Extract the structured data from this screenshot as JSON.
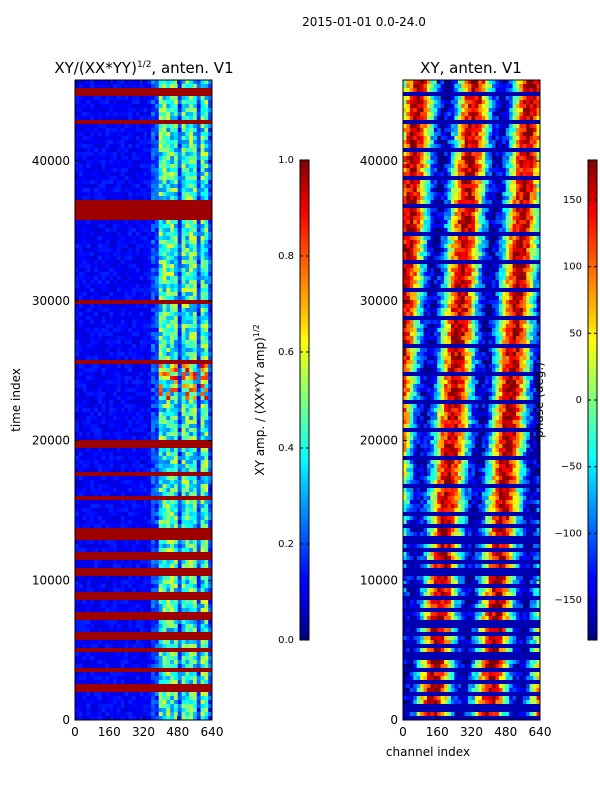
{
  "suptitle": "2015-01-01 0.0-24.0",
  "chart_data": [
    {
      "type": "heatmap",
      "title_main": "XY/(XX*YY)",
      "title_exp": "1/2",
      "title_suffix": ", anten. V1",
      "xlabel": "",
      "ylabel": "time index",
      "xlim": [
        0,
        640
      ],
      "ylim": [
        0,
        45800
      ],
      "x_ticks": [
        0,
        160,
        320,
        480,
        640
      ],
      "x_tick_labels": [
        "0",
        "160",
        "320",
        "480",
        "640"
      ],
      "y_ticks": [
        0,
        10000,
        20000,
        30000,
        40000
      ],
      "y_tick_labels": [
        "0",
        "10000",
        "20000",
        "30000",
        "40000"
      ],
      "colorbar": {
        "label_main": "XY amp. / (XX*YY amp)",
        "label_exp": "1/2",
        "range": [
          0.0,
          1.0
        ],
        "ticks": [
          0.0,
          0.2,
          0.4,
          0.6,
          0.8,
          1.0
        ],
        "tick_labels": [
          "0.0",
          "0.2",
          "0.4",
          "0.6",
          "0.8",
          "1.0"
        ]
      }
    },
    {
      "type": "heatmap",
      "title_main": "XY, anten. V1",
      "title_exp": "",
      "title_suffix": "",
      "xlabel": "channel index",
      "ylabel": "",
      "xlim": [
        0,
        640
      ],
      "ylim": [
        0,
        45800
      ],
      "x_ticks": [
        0,
        160,
        320,
        480,
        640
      ],
      "x_tick_labels": [
        "0",
        "160",
        "320",
        "480",
        "640"
      ],
      "y_ticks": [
        0,
        10000,
        20000,
        30000,
        40000
      ],
      "y_tick_labels": [
        "0",
        "10000",
        "20000",
        "30000",
        "40000"
      ],
      "colorbar": {
        "label_main": "phase (deg.)",
        "label_exp": "",
        "range": [
          -180,
          180
        ],
        "ticks": [
          -150,
          -100,
          -50,
          0,
          50,
          100,
          150
        ],
        "tick_labels": [
          "−150",
          "−100",
          "−50",
          "0",
          "50",
          "100",
          "150"
        ]
      }
    }
  ]
}
